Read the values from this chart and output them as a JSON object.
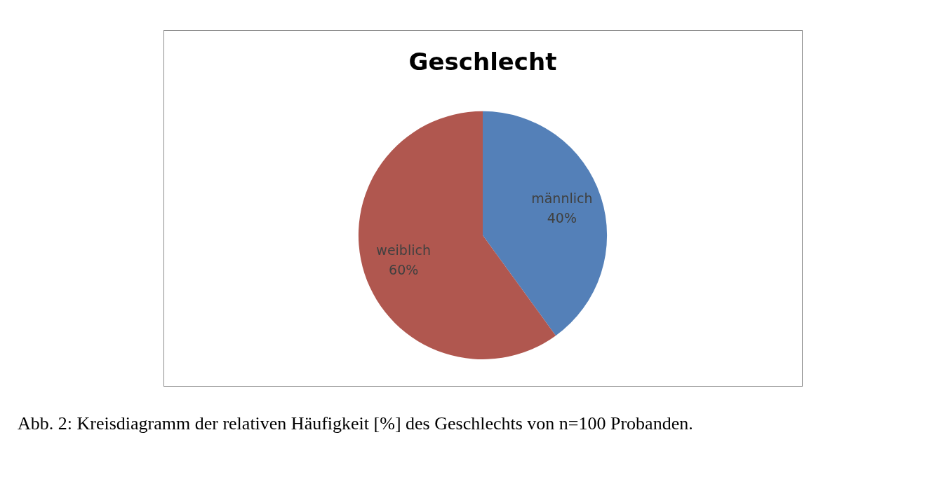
{
  "chart_data": {
    "type": "pie",
    "title": "Geschlecht",
    "categories": [
      "männlich",
      "weiblich"
    ],
    "values": [
      40,
      60
    ],
    "value_labels": [
      "40%",
      "60%"
    ],
    "colors": [
      "#5480b8",
      "#b0574f"
    ],
    "legend": false,
    "annotations": [
      "Abb. 2: Kreisdiagramm der relativen Häufigkeit [%] des Geschlechts von n=100 Probanden."
    ]
  }
}
